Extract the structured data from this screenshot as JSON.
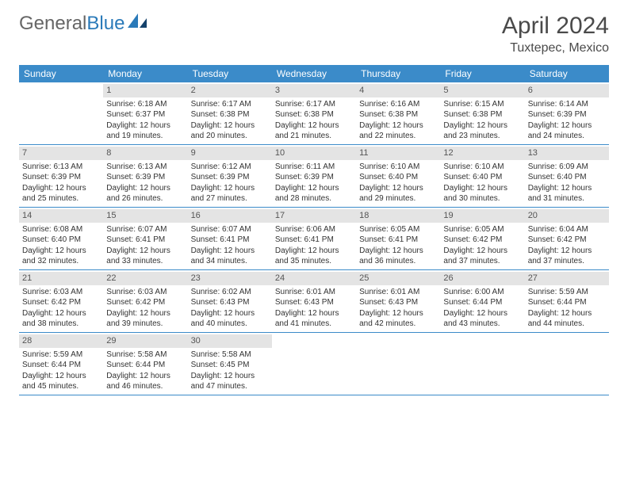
{
  "logo": {
    "gray": "General",
    "blue": "Blue"
  },
  "title": "April 2024",
  "subtitle": "Tuxtepec, Mexico",
  "colors": {
    "header_bg": "#3b8bc9",
    "header_text": "#ffffff",
    "daynum_bg": "#e4e4e4",
    "row_border": "#3b8bc9",
    "text": "#333333",
    "title_text": "#4a4a4a",
    "logo_gray": "#666666",
    "logo_blue": "#2a7ab9"
  },
  "dayNames": [
    "Sunday",
    "Monday",
    "Tuesday",
    "Wednesday",
    "Thursday",
    "Friday",
    "Saturday"
  ],
  "weeks": [
    [
      {
        "day": "",
        "sunrise": "",
        "sunset": "",
        "daylight": ""
      },
      {
        "day": "1",
        "sunrise": "Sunrise: 6:18 AM",
        "sunset": "Sunset: 6:37 PM",
        "daylight": "Daylight: 12 hours and 19 minutes."
      },
      {
        "day": "2",
        "sunrise": "Sunrise: 6:17 AM",
        "sunset": "Sunset: 6:38 PM",
        "daylight": "Daylight: 12 hours and 20 minutes."
      },
      {
        "day": "3",
        "sunrise": "Sunrise: 6:17 AM",
        "sunset": "Sunset: 6:38 PM",
        "daylight": "Daylight: 12 hours and 21 minutes."
      },
      {
        "day": "4",
        "sunrise": "Sunrise: 6:16 AM",
        "sunset": "Sunset: 6:38 PM",
        "daylight": "Daylight: 12 hours and 22 minutes."
      },
      {
        "day": "5",
        "sunrise": "Sunrise: 6:15 AM",
        "sunset": "Sunset: 6:38 PM",
        "daylight": "Daylight: 12 hours and 23 minutes."
      },
      {
        "day": "6",
        "sunrise": "Sunrise: 6:14 AM",
        "sunset": "Sunset: 6:39 PM",
        "daylight": "Daylight: 12 hours and 24 minutes."
      }
    ],
    [
      {
        "day": "7",
        "sunrise": "Sunrise: 6:13 AM",
        "sunset": "Sunset: 6:39 PM",
        "daylight": "Daylight: 12 hours and 25 minutes."
      },
      {
        "day": "8",
        "sunrise": "Sunrise: 6:13 AM",
        "sunset": "Sunset: 6:39 PM",
        "daylight": "Daylight: 12 hours and 26 minutes."
      },
      {
        "day": "9",
        "sunrise": "Sunrise: 6:12 AM",
        "sunset": "Sunset: 6:39 PM",
        "daylight": "Daylight: 12 hours and 27 minutes."
      },
      {
        "day": "10",
        "sunrise": "Sunrise: 6:11 AM",
        "sunset": "Sunset: 6:39 PM",
        "daylight": "Daylight: 12 hours and 28 minutes."
      },
      {
        "day": "11",
        "sunrise": "Sunrise: 6:10 AM",
        "sunset": "Sunset: 6:40 PM",
        "daylight": "Daylight: 12 hours and 29 minutes."
      },
      {
        "day": "12",
        "sunrise": "Sunrise: 6:10 AM",
        "sunset": "Sunset: 6:40 PM",
        "daylight": "Daylight: 12 hours and 30 minutes."
      },
      {
        "day": "13",
        "sunrise": "Sunrise: 6:09 AM",
        "sunset": "Sunset: 6:40 PM",
        "daylight": "Daylight: 12 hours and 31 minutes."
      }
    ],
    [
      {
        "day": "14",
        "sunrise": "Sunrise: 6:08 AM",
        "sunset": "Sunset: 6:40 PM",
        "daylight": "Daylight: 12 hours and 32 minutes."
      },
      {
        "day": "15",
        "sunrise": "Sunrise: 6:07 AM",
        "sunset": "Sunset: 6:41 PM",
        "daylight": "Daylight: 12 hours and 33 minutes."
      },
      {
        "day": "16",
        "sunrise": "Sunrise: 6:07 AM",
        "sunset": "Sunset: 6:41 PM",
        "daylight": "Daylight: 12 hours and 34 minutes."
      },
      {
        "day": "17",
        "sunrise": "Sunrise: 6:06 AM",
        "sunset": "Sunset: 6:41 PM",
        "daylight": "Daylight: 12 hours and 35 minutes."
      },
      {
        "day": "18",
        "sunrise": "Sunrise: 6:05 AM",
        "sunset": "Sunset: 6:41 PM",
        "daylight": "Daylight: 12 hours and 36 minutes."
      },
      {
        "day": "19",
        "sunrise": "Sunrise: 6:05 AM",
        "sunset": "Sunset: 6:42 PM",
        "daylight": "Daylight: 12 hours and 37 minutes."
      },
      {
        "day": "20",
        "sunrise": "Sunrise: 6:04 AM",
        "sunset": "Sunset: 6:42 PM",
        "daylight": "Daylight: 12 hours and 37 minutes."
      }
    ],
    [
      {
        "day": "21",
        "sunrise": "Sunrise: 6:03 AM",
        "sunset": "Sunset: 6:42 PM",
        "daylight": "Daylight: 12 hours and 38 minutes."
      },
      {
        "day": "22",
        "sunrise": "Sunrise: 6:03 AM",
        "sunset": "Sunset: 6:42 PM",
        "daylight": "Daylight: 12 hours and 39 minutes."
      },
      {
        "day": "23",
        "sunrise": "Sunrise: 6:02 AM",
        "sunset": "Sunset: 6:43 PM",
        "daylight": "Daylight: 12 hours and 40 minutes."
      },
      {
        "day": "24",
        "sunrise": "Sunrise: 6:01 AM",
        "sunset": "Sunset: 6:43 PM",
        "daylight": "Daylight: 12 hours and 41 minutes."
      },
      {
        "day": "25",
        "sunrise": "Sunrise: 6:01 AM",
        "sunset": "Sunset: 6:43 PM",
        "daylight": "Daylight: 12 hours and 42 minutes."
      },
      {
        "day": "26",
        "sunrise": "Sunrise: 6:00 AM",
        "sunset": "Sunset: 6:44 PM",
        "daylight": "Daylight: 12 hours and 43 minutes."
      },
      {
        "day": "27",
        "sunrise": "Sunrise: 5:59 AM",
        "sunset": "Sunset: 6:44 PM",
        "daylight": "Daylight: 12 hours and 44 minutes."
      }
    ],
    [
      {
        "day": "28",
        "sunrise": "Sunrise: 5:59 AM",
        "sunset": "Sunset: 6:44 PM",
        "daylight": "Daylight: 12 hours and 45 minutes."
      },
      {
        "day": "29",
        "sunrise": "Sunrise: 5:58 AM",
        "sunset": "Sunset: 6:44 PM",
        "daylight": "Daylight: 12 hours and 46 minutes."
      },
      {
        "day": "30",
        "sunrise": "Sunrise: 5:58 AM",
        "sunset": "Sunset: 6:45 PM",
        "daylight": "Daylight: 12 hours and 47 minutes."
      },
      {
        "day": "",
        "sunrise": "",
        "sunset": "",
        "daylight": ""
      },
      {
        "day": "",
        "sunrise": "",
        "sunset": "",
        "daylight": ""
      },
      {
        "day": "",
        "sunrise": "",
        "sunset": "",
        "daylight": ""
      },
      {
        "day": "",
        "sunrise": "",
        "sunset": "",
        "daylight": ""
      }
    ]
  ]
}
